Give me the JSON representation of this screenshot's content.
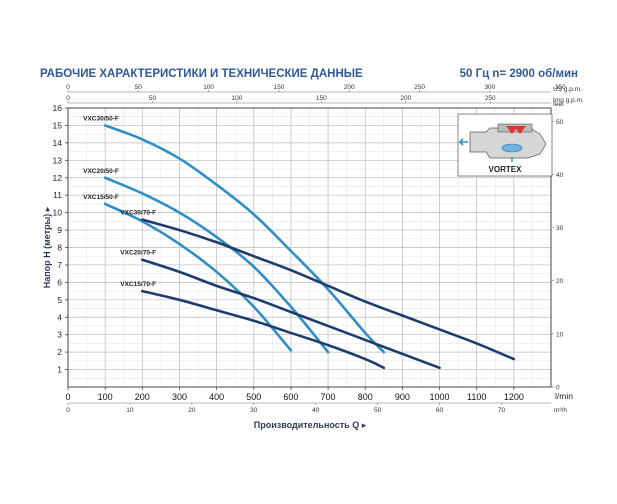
{
  "header": {
    "title": "РАБОЧИЕ ХАРАКТЕРИСТИКИ И ТЕХНИЧЕСКИЕ ДАННЫЕ",
    "right": "50 Гц    n= 2900 об/мин"
  },
  "inset": {
    "label": "VORTEX"
  },
  "colors": {
    "light_series": "#2f8fc4",
    "dark_series": "#1f3c6e",
    "title": "#2f5a96"
  },
  "chart_data": {
    "type": "line",
    "title": "РАБОЧИЕ ХАРАКТЕРИСТИКИ И ТЕХНИЧЕСКИЕ ДАННЫЕ",
    "xlabel": "Производительность Q",
    "ylabel": "Напор H (метры)",
    "x_unit": "l/min",
    "xlim": [
      0,
      1300
    ],
    "ylim": [
      0,
      16
    ],
    "x_ticks": [
      0,
      100,
      200,
      300,
      400,
      500,
      600,
      700,
      800,
      900,
      1000,
      1100,
      1200
    ],
    "y_ticks": [
      1,
      2,
      3,
      4,
      5,
      6,
      7,
      8,
      9,
      10,
      11,
      12,
      13,
      14,
      15,
      16
    ],
    "secondary_axes": {
      "top_us": {
        "unit": "US g.p.m.",
        "ticks": [
          0,
          50,
          100,
          150,
          200,
          250,
          300,
          350
        ]
      },
      "top_imp": {
        "unit": "Imp g.p.m.",
        "ticks": [
          0,
          50,
          100,
          150,
          200,
          250
        ]
      },
      "bottom_m3h": {
        "unit": "m³/h",
        "ticks": [
          0,
          10,
          20,
          30,
          40,
          50,
          60,
          70
        ]
      },
      "right_feet": {
        "unit": "feet",
        "ticks": [
          0,
          10,
          20,
          30,
          40,
          50
        ]
      }
    },
    "grid": true,
    "series": [
      {
        "name": "VXC30/50-F",
        "color": "light",
        "x": [
          100,
          200,
          300,
          400,
          500,
          600,
          700,
          800,
          850
        ],
        "y": [
          15,
          14.2,
          13.1,
          11.6,
          9.9,
          7.8,
          5.6,
          3.1,
          2.0
        ]
      },
      {
        "name": "VXC20/50-F",
        "color": "light",
        "x": [
          100,
          200,
          300,
          400,
          500,
          600,
          700
        ],
        "y": [
          12,
          11.1,
          10,
          8.6,
          6.9,
          4.6,
          2.0
        ]
      },
      {
        "name": "VXC15/50-F",
        "color": "light",
        "x": [
          100,
          200,
          300,
          400,
          500,
          600
        ],
        "y": [
          10.5,
          9.5,
          8.2,
          6.6,
          4.6,
          2.1
        ]
      },
      {
        "name": "VXC30/70-F",
        "color": "dark",
        "x": [
          200,
          300,
          400,
          500,
          600,
          700,
          800,
          900,
          1000,
          1100,
          1200
        ],
        "y": [
          9.6,
          9.0,
          8.3,
          7.5,
          6.7,
          5.8,
          4.9,
          4.1,
          3.3,
          2.5,
          1.6
        ]
      },
      {
        "name": "VXC20/70-F",
        "color": "dark",
        "x": [
          200,
          300,
          400,
          500,
          600,
          700,
          800,
          900,
          1000
        ],
        "y": [
          7.3,
          6.6,
          5.8,
          5.1,
          4.3,
          3.5,
          2.7,
          1.9,
          1.1
        ]
      },
      {
        "name": "VXC15/70-F",
        "color": "dark",
        "x": [
          200,
          300,
          400,
          500,
          600,
          700,
          800,
          850
        ],
        "y": [
          5.5,
          5.0,
          4.4,
          3.8,
          3.1,
          2.4,
          1.6,
          1.1
        ]
      }
    ]
  }
}
